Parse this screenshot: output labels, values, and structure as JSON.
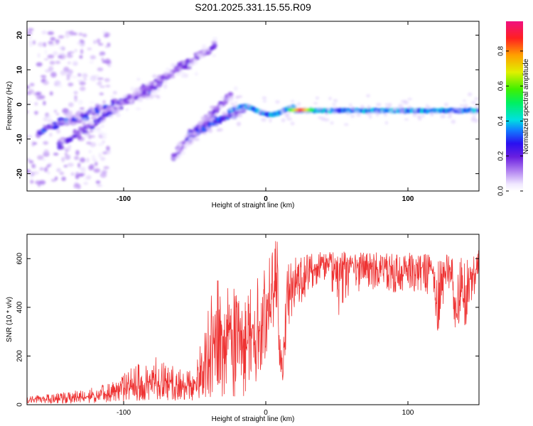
{
  "title": "S201.2025.331.15.55.R09",
  "colors": {
    "snr_line": "#ee3333",
    "spectrogram_low": "#9a70e8",
    "spectrogram_mid": "#1fc8e0",
    "spectrogram_high": "#ee2222"
  },
  "chart_data": [
    {
      "type": "heatmap",
      "name": "spectrogram",
      "xlabel": "Height of straight line (km)",
      "ylabel": "Frequency (Hz)",
      "xlim": [
        -168,
        150
      ],
      "ylim": [
        -25,
        24
      ],
      "xticks": [
        -100,
        0,
        100
      ],
      "yticks": [
        20,
        10,
        0,
        -10,
        -20
      ],
      "colorbar": {
        "label": "Normalized spectral amplitude",
        "range": [
          0.0,
          0.97
        ],
        "ticks": [
          "0.0",
          "0.2",
          "0.4",
          "0.6",
          "0.8"
        ]
      },
      "features": [
        {
          "description": "scattered noise blobs",
          "x_range": [
            -168,
            -110
          ],
          "y_range": [
            -24,
            22
          ],
          "amplitude": 0.1
        },
        {
          "description": "rising trace",
          "x_start": -160,
          "y_start": -8,
          "x_end": -75,
          "y_end": 5,
          "amplitude": 0.2
        },
        {
          "description": "rising trace",
          "x_start": -145,
          "y_start": -12,
          "x_end": -55,
          "y_end": 12,
          "amplitude": 0.15
        },
        {
          "description": "rising trace",
          "x_start": -110,
          "y_start": -2,
          "x_end": -35,
          "y_end": 17,
          "amplitude": 0.12
        },
        {
          "description": "rising trace",
          "x_start": -65,
          "y_start": -15,
          "x_end": -25,
          "y_end": 3,
          "amplitude": 0.12
        },
        {
          "description": "rising trace",
          "x_start": -55,
          "y_start": -9,
          "x_end": -15,
          "y_end": -1,
          "amplitude": 0.2
        },
        {
          "description": "steady line",
          "x_start": -25,
          "x_end": 150,
          "frequency": -1.8,
          "amplitude": 0.35
        },
        {
          "description": "peak",
          "x": 25,
          "frequency": -1.6,
          "amplitude": 0.9
        }
      ]
    },
    {
      "type": "line",
      "name": "snr",
      "xlabel": "Height of straight line (km)",
      "ylabel": "SNR (10 * v/v)",
      "xlim": [
        -168,
        150
      ],
      "ylim": [
        0,
        700
      ],
      "xticks": [
        -100,
        0,
        100
      ],
      "yticks": [
        0,
        200,
        400,
        600
      ],
      "series": [
        {
          "name": "SNR",
          "x": [
            -168,
            -150,
            -130,
            -110,
            -90,
            -80,
            -70,
            -60,
            -50,
            -45,
            -40,
            -35,
            -30,
            -25,
            -20,
            -15,
            -10,
            -5,
            0,
            5,
            8,
            10,
            12,
            15,
            20,
            25,
            30,
            35,
            40,
            45,
            50,
            55,
            60,
            70,
            80,
            90,
            100,
            110,
            118,
            120,
            122,
            125,
            130,
            133,
            135,
            138,
            140,
            142,
            145,
            148,
            150
          ],
          "values": [
            20,
            22,
            28,
            45,
            80,
            100,
            85,
            75,
            80,
            130,
            210,
            260,
            280,
            300,
            270,
            250,
            280,
            300,
            370,
            440,
            480,
            150,
            120,
            420,
            470,
            520,
            540,
            560,
            570,
            580,
            560,
            570,
            575,
            580,
            570,
            565,
            570,
            560,
            560,
            400,
            360,
            540,
            560,
            420,
            380,
            550,
            330,
            500,
            520,
            560,
            570
          ],
          "upper_envelope": [
            35,
            45,
            60,
            90,
            170,
            210,
            180,
            150,
            160,
            280,
            420,
            500,
            560,
            590,
            560,
            500,
            520,
            550,
            590,
            640,
            700,
            300,
            260,
            600,
            610,
            620,
            630,
            630,
            630,
            630,
            620,
            630,
            630,
            630,
            625,
            620,
            625,
            620,
            615,
            620,
            615,
            615,
            620,
            615,
            610,
            620,
            600,
            610,
            620,
            625,
            640
          ],
          "lower_envelope": [
            5,
            5,
            6,
            8,
            15,
            20,
            18,
            15,
            15,
            20,
            30,
            40,
            30,
            20,
            20,
            30,
            60,
            100,
            200,
            300,
            350,
            100,
            90,
            300,
            380,
            420,
            440,
            480,
            500,
            520,
            330,
            420,
            450,
            480,
            470,
            460,
            470,
            460,
            450,
            310,
            300,
            420,
            460,
            300,
            290,
            440,
            280,
            380,
            420,
            460,
            480
          ]
        }
      ]
    }
  ]
}
